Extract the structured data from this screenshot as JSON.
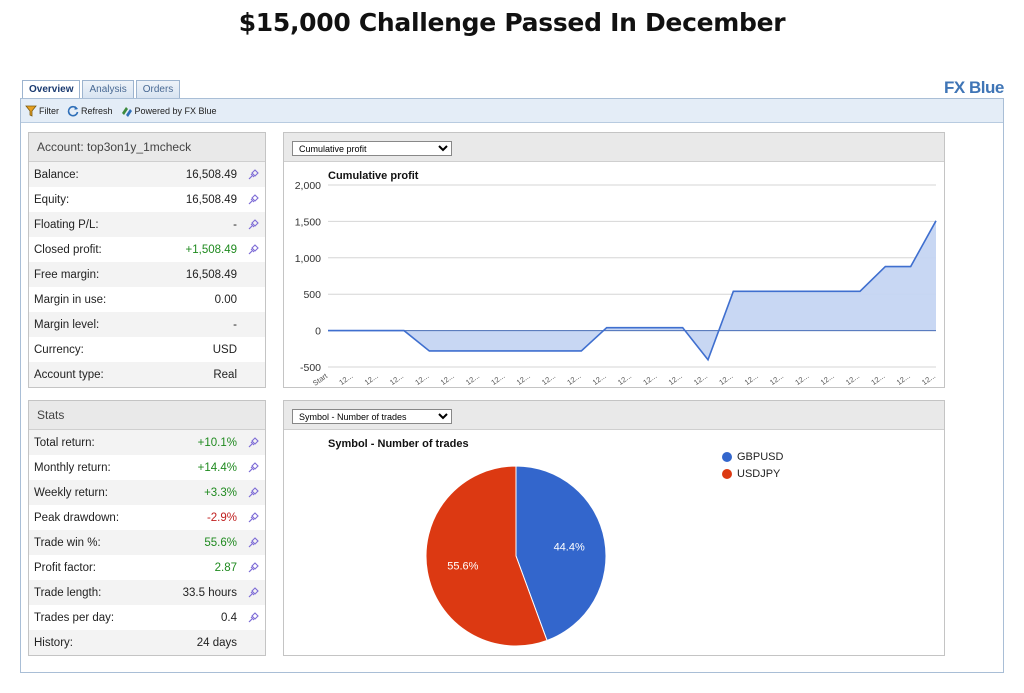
{
  "page_title": "$15,000 Challenge Passed In December",
  "brand": "FX Blue",
  "tabs": [
    {
      "label": "Overview",
      "active": true
    },
    {
      "label": "Analysis",
      "active": false
    },
    {
      "label": "Orders",
      "active": false
    }
  ],
  "toolbar": {
    "filter_label": "Filter",
    "refresh_label": "Refresh",
    "powered_label": "Powered by FX Blue"
  },
  "account": {
    "header": "Account: top3on1y_1mcheck",
    "rows": [
      {
        "label": "Balance:",
        "value": "16,508.49",
        "tone": "",
        "pin": true
      },
      {
        "label": "Equity:",
        "value": "16,508.49",
        "tone": "",
        "pin": true
      },
      {
        "label": "Floating P/L:",
        "value": "-",
        "tone": "",
        "pin": true
      },
      {
        "label": "Closed profit:",
        "value": "+1,508.49",
        "tone": "pos",
        "pin": true
      },
      {
        "label": "Free margin:",
        "value": "16,508.49",
        "tone": "",
        "pin": false
      },
      {
        "label": "Margin in use:",
        "value": "0.00",
        "tone": "",
        "pin": false
      },
      {
        "label": "Margin level:",
        "value": "-",
        "tone": "",
        "pin": false
      },
      {
        "label": "Currency:",
        "value": "USD",
        "tone": "",
        "pin": false
      },
      {
        "label": "Account type:",
        "value": "Real",
        "tone": "",
        "pin": false
      }
    ]
  },
  "stats": {
    "header": "Stats",
    "rows": [
      {
        "label": "Total return:",
        "value": "+10.1%",
        "tone": "pos",
        "pin": true
      },
      {
        "label": "Monthly return:",
        "value": "+14.4%",
        "tone": "pos",
        "pin": true
      },
      {
        "label": "Weekly return:",
        "value": "+3.3%",
        "tone": "pos",
        "pin": true
      },
      {
        "label": "Peak drawdown:",
        "value": "-2.9%",
        "tone": "neg",
        "pin": true
      },
      {
        "label": "Trade win %:",
        "value": "55.6%",
        "tone": "pos",
        "pin": true
      },
      {
        "label": "Profit factor:",
        "value": "2.87",
        "tone": "pos",
        "pin": true
      },
      {
        "label": "Trade length:",
        "value": "33.5 hours",
        "tone": "",
        "pin": true
      },
      {
        "label": "Trades per day:",
        "value": "0.4",
        "tone": "",
        "pin": true
      },
      {
        "label": "History:",
        "value": "24 days",
        "tone": "",
        "pin": false
      }
    ]
  },
  "colors": {
    "area_fill": "#c5d5f2",
    "area_line": "#3f6fcf",
    "gbpusd": "#3366cc",
    "usdjpy": "#dc3912",
    "positive": "#1f8a1f",
    "negative": "#c02020"
  },
  "icons": {
    "filter": "filter-icon",
    "refresh": "refresh-icon",
    "powered": "fxblue-icon",
    "pin": "pin-icon"
  },
  "chart_data": [
    {
      "type": "area",
      "selector": "Cumulative profit",
      "title": "Cumulative profit",
      "xlabel": "",
      "ylabel": "",
      "ylim": [
        -500,
        2000
      ],
      "yticks": [
        "2,000",
        "1,500",
        "1,000",
        "500",
        "0",
        "-500"
      ],
      "ytick_values": [
        2000,
        1500,
        1000,
        500,
        0,
        -500
      ],
      "x": [
        "Start",
        "12...",
        "12...",
        "12...",
        "12...",
        "12...",
        "12...",
        "12...",
        "12...",
        "12...",
        "12...",
        "12...",
        "12...",
        "12...",
        "12...",
        "12...",
        "12...",
        "12...",
        "12...",
        "12...",
        "12...",
        "12...",
        "12...",
        "12...",
        "12..."
      ],
      "values": [
        0,
        0,
        0,
        0,
        -280,
        -280,
        -280,
        -280,
        -280,
        -280,
        -280,
        40,
        40,
        40,
        40,
        -400,
        540,
        540,
        540,
        540,
        540,
        540,
        880,
        880,
        1508
      ]
    },
    {
      "type": "pie",
      "selector": "Symbol - Number of trades",
      "title": "Symbol - Number of trades",
      "categories": [
        "GBPUSD",
        "USDJPY"
      ],
      "values": [
        44.4,
        55.6
      ],
      "labels": [
        "44.4%",
        "55.6%"
      ],
      "legend": "top-right"
    }
  ]
}
